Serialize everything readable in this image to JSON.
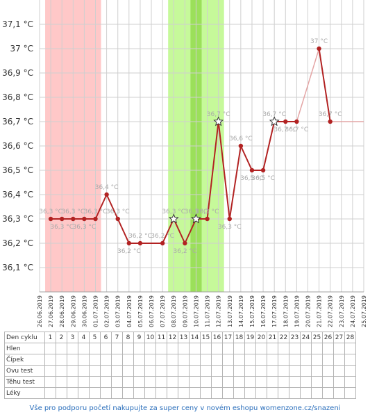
{
  "chart_data": {
    "type": "line",
    "title": "",
    "xlabel": "",
    "ylabel": "",
    "x": [
      "26.06.2019",
      "27.06.2019",
      "28.06.2019",
      "29.06.2019",
      "30.06.2019",
      "01.07.2019",
      "02.07.2019",
      "03.07.2019",
      "04.07.2019",
      "05.07.2019",
      "06.07.2019",
      "07.07.2019",
      "08.07.2019",
      "09.07.2019",
      "10.07.2019",
      "11.07.2019",
      "12.07.2019",
      "13.07.2019",
      "14.07.2019",
      "15.07.2019",
      "16.07.2019",
      "17.07.2019",
      "18.07.2019",
      "19.07.2019",
      "20.07.2019",
      "21.07.2019",
      "22.07.2019",
      "23.07.2019",
      "24.07.2019",
      "25.07.2019"
    ],
    "yticks": [
      "36,1 °C",
      "36,2 °C",
      "36,3 °C",
      "36,4 °C",
      "36,5 °C",
      "36,6 °C",
      "36,7 °C",
      "36,8 °C",
      "36,9 °C",
      "37 °C",
      "37,1 °C"
    ],
    "ylim": [
      36.0,
      37.2
    ],
    "grid": true,
    "series": [
      {
        "values": [
          null,
          36.3,
          36.3,
          36.3,
          36.3,
          36.3,
          36.4,
          36.3,
          36.2,
          36.2,
          null,
          36.2,
          36.3,
          36.2,
          36.3,
          36.3,
          36.7,
          36.3,
          36.6,
          36.5,
          36.5,
          36.7,
          36.7,
          36.7,
          null,
          37.0,
          36.7,
          null,
          null,
          null
        ],
        "labels": [
          "",
          "36,3 °C",
          "36,3 °C",
          "36,3 °C",
          "36,3 °C",
          "36,3 °C",
          "36,4 °C",
          "36,3 °C",
          "36,2 °C",
          "36,2 °C",
          "",
          "36,2 °C",
          "36,3 °C",
          "36,2 °C",
          "36,3 °C",
          "36,3 °C",
          "36,7 °C",
          "36,3 °C",
          "36,6 °C",
          "36,5 °C",
          "36,5 °C",
          "36,7 °C",
          "36,7 °C",
          "36,7 °C",
          "",
          "37 °C",
          "36,7 °C",
          "",
          "",
          ""
        ],
        "star_indices": [
          12,
          14,
          16,
          21
        ],
        "color": "#b22222"
      }
    ],
    "menstruation_band": [
      26.5,
      31.5
    ],
    "fertile_band": [
      37.5,
      42.5
    ],
    "ovulation_band": [
      39.5,
      40.5
    ],
    "colors": {
      "menstruation": "#ffc8c8",
      "fertile": "#c6f99a",
      "ovulation": "#9be05a",
      "line": "#b22222",
      "faded": "#e4a5a5"
    }
  },
  "table": {
    "header_label": "Den cyklu",
    "days": [
      "1",
      "2",
      "3",
      "4",
      "5",
      "6",
      "7",
      "8",
      "9",
      "10",
      "11",
      "12",
      "13",
      "14",
      "15",
      "16",
      "17",
      "18",
      "19",
      "20",
      "21",
      "22",
      "23",
      "24",
      "25",
      "26",
      "27",
      "28"
    ],
    "rows": [
      "Hlen",
      "Čípek",
      "Ovu test",
      "Těhu test",
      "Léky"
    ]
  },
  "footer": "Vše pro podporu početí nakupujte za super ceny v novém eshopu womenzone.cz/snazeni"
}
